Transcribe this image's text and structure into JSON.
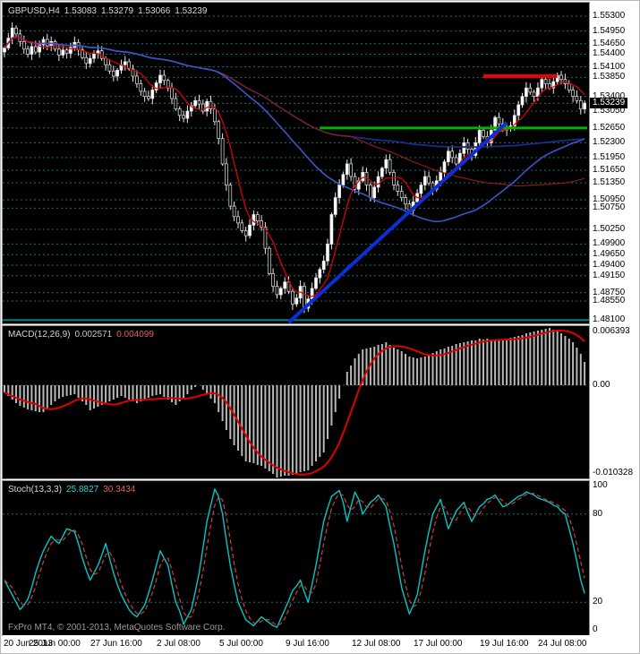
{
  "colors": {
    "background": "#000000",
    "grid": "#1d6e6e",
    "bull": "#ffffff",
    "bear": "#000000",
    "candle_outline": "#e8e8e8",
    "ma_fast": "#e80000",
    "ma_slow": "#8b1a1a",
    "ma_mid": "#3a56c8",
    "ma_long": "#1c2d8a",
    "macd_histogram": "#b8b8b8",
    "macd_signal": "#e00000",
    "stoch_k": "#00c8c8",
    "stoch_d": "#d04040"
  },
  "price_panel": {
    "header_symbol": "GBPUSD,H4",
    "header_open": "1.53083",
    "header_high": "1.53279",
    "header_low": "1.53066",
    "header_close": "1.53239",
    "current_price": "1.53239"
  },
  "macd_panel": {
    "label": "MACD(12,26,9)",
    "value_main": "0.002571",
    "value_signal": "0.004099"
  },
  "stoch_panel": {
    "label": "Stoch(13,3,3)",
    "value_main": "25.8827",
    "value_signal": "30.3434",
    "copyright": "FxPro MT4, © 2001-2013, MetaQuotes Software Corp."
  },
  "time_axis": {
    "ticks": [
      {
        "label": "20 Jun 2013",
        "index": 0
      },
      {
        "label": "25 Jun 00:00",
        "index": 13
      },
      {
        "label": "27 Jun 16:00",
        "index": 29
      },
      {
        "label": "2 Jul 08:00",
        "index": 46
      },
      {
        "label": "5 Jul 00:00",
        "index": 62
      },
      {
        "label": "9 Jul 16:00",
        "index": 79
      },
      {
        "label": "12 Jul 08:00",
        "index": 96
      },
      {
        "label": "17 Jul 00:00",
        "index": 112
      },
      {
        "label": "19 Jul 16:00",
        "index": 129
      },
      {
        "label": "24 Jul 08:00",
        "index": 144
      }
    ]
  },
  "chart_data": [
    {
      "type": "candlestick",
      "title": "GBPUSD H4 price",
      "price_range": [
        1.4802,
        1.5562
      ],
      "first_open": 1.5445,
      "bid_price": 1.53239,
      "closes": [
        1.5455,
        1.5478,
        1.5502,
        1.5488,
        1.547,
        1.5452,
        1.544,
        1.5458,
        1.5445,
        1.5462,
        1.5475,
        1.546,
        1.547,
        1.5452,
        1.5438,
        1.545,
        1.5442,
        1.5456,
        1.5468,
        1.545,
        1.5432,
        1.5418,
        1.543,
        1.5442,
        1.5448,
        1.543,
        1.5415,
        1.54,
        1.5388,
        1.5402,
        1.5415,
        1.5422,
        1.5405,
        1.5388,
        1.537,
        1.5352,
        1.534,
        1.5335,
        1.5355,
        1.5372,
        1.539,
        1.5378,
        1.536,
        1.5335,
        1.531,
        1.5295,
        1.5288,
        1.5305,
        1.5318,
        1.533,
        1.5322,
        1.5305,
        1.5328,
        1.531,
        1.528,
        1.524,
        1.518,
        1.513,
        1.508,
        1.5055,
        1.504,
        1.5022,
        1.501,
        1.5035,
        1.506,
        1.5045,
        1.503,
        1.498,
        1.492,
        1.489,
        1.487,
        1.4885,
        1.49,
        1.4878,
        1.4848,
        1.4862,
        1.489,
        1.4838,
        1.486,
        1.4885,
        1.491,
        1.493,
        1.495,
        1.499,
        1.506,
        1.51,
        1.513,
        1.5155,
        1.518,
        1.515,
        1.512,
        1.514,
        1.516,
        1.513,
        1.51,
        1.5125,
        1.515,
        1.517,
        1.519,
        1.516,
        1.513,
        1.5115,
        1.51,
        1.5085,
        1.507,
        1.509,
        1.511,
        1.513,
        1.515,
        1.5135,
        1.512,
        1.514,
        1.516,
        1.5185,
        1.521,
        1.5195,
        1.518,
        1.5205,
        1.523,
        1.5215,
        1.52,
        1.523,
        1.526,
        1.5245,
        1.523,
        1.526,
        1.529,
        1.5275,
        1.526,
        1.5265,
        1.527,
        1.5295,
        1.532,
        1.534,
        1.536,
        1.535,
        1.534,
        1.536,
        1.538,
        1.537,
        1.536,
        1.5375,
        1.539,
        1.538,
        1.537,
        1.5355,
        1.534,
        1.533,
        1.531,
        1.5324
      ],
      "overlays": {
        "ma_fast": {
          "period": 7
        },
        "ma_slow": {
          "period": 90
        },
        "ma_mid": {
          "period": 55
        },
        "ma_long": {
          "period": 150
        }
      },
      "objects": {
        "trendline": {
          "from_index": 73,
          "from_price": 1.4804,
          "to_index": 129,
          "to_price": 1.5278,
          "color": "#0b2fd4",
          "width": 4
        },
        "resistance": {
          "from_index": 123,
          "to_index": 142,
          "price": 1.5388,
          "color": "#ee0000",
          "width": 4
        },
        "support_green": {
          "from_index": 81,
          "price": 1.5265,
          "color": "#00b400",
          "width": 3
        },
        "support_teal": {
          "price": 1.481,
          "color": "#008080",
          "width": 2
        }
      },
      "axis_labels": [
        {
          "label": "1.55300",
          "value": 1.553
        },
        {
          "label": "1.54950",
          "value": 1.5495
        },
        {
          "label": "1.54650",
          "value": 1.5465
        },
        {
          "label": "1.54400",
          "value": 1.544
        },
        {
          "label": "1.54100",
          "value": 1.541
        },
        {
          "label": "1.53850",
          "value": 1.5385
        },
        {
          "label": "1.53400",
          "value": 1.534
        },
        {
          "label": "1.53050",
          "value": 1.5305
        },
        {
          "label": "1.52650",
          "value": 1.5265
        },
        {
          "label": "1.52300",
          "value": 1.523
        },
        {
          "label": "1.51950",
          "value": 1.5195
        },
        {
          "label": "1.51650",
          "value": 1.5165
        },
        {
          "label": "1.51350",
          "value": 1.5135
        },
        {
          "label": "1.50950",
          "value": 1.5095
        },
        {
          "label": "1.50750",
          "value": 1.5075
        },
        {
          "label": "1.50250",
          "value": 1.5025
        },
        {
          "label": "1.49900",
          "value": 1.499
        },
        {
          "label": "1.49650",
          "value": 1.4965
        },
        {
          "label": "1.49400",
          "value": 1.494
        },
        {
          "label": "1.49150",
          "value": 1.4915
        },
        {
          "label": "1.48750",
          "value": 1.4875
        },
        {
          "label": "1.48550",
          "value": 1.4855
        },
        {
          "label": "1.48100",
          "value": 1.481
        }
      ]
    },
    {
      "type": "bar",
      "title": "MACD(12,26,9)",
      "range": [
        -0.0104,
        0.0066
      ],
      "signal_period": 9,
      "histogram": [
        -0.0008,
        -0.0012,
        -0.0016,
        -0.002,
        -0.0023,
        -0.0025,
        -0.0027,
        -0.0028,
        -0.0029,
        -0.003,
        -0.003,
        -0.0026,
        -0.0022,
        -0.0018,
        -0.0015,
        -0.0013,
        -0.0012,
        -0.0011,
        -0.001,
        -0.0014,
        -0.0018,
        -0.0022,
        -0.0028,
        -0.0026,
        -0.0024,
        -0.0022,
        -0.002,
        -0.0018,
        -0.0016,
        -0.0014,
        -0.0012,
        -0.0014,
        -0.0016,
        -0.0018,
        -0.002,
        -0.0018,
        -0.0016,
        -0.0014,
        -0.0012,
        -0.0011,
        -0.001,
        -0.0013,
        -0.0016,
        -0.0019,
        -0.0022,
        -0.0018,
        -0.0014,
        -0.001,
        -0.0005,
        -0.0002,
        0.0,
        -0.0005,
        -0.001,
        -0.0015,
        -0.002,
        -0.003,
        -0.004,
        -0.005,
        -0.006,
        -0.0067,
        -0.0073,
        -0.0079,
        -0.0085,
        -0.0086,
        -0.0087,
        -0.0089,
        -0.009,
        -0.0093,
        -0.0096,
        -0.0099,
        -0.0103,
        -0.0102,
        -0.0101,
        -0.0101,
        -0.01,
        -0.0099,
        -0.0097,
        -0.0096,
        -0.0095,
        -0.009,
        -0.0085,
        -0.008,
        -0.0075,
        -0.006,
        -0.0045,
        -0.003,
        -0.0015,
        0.0,
        0.0015,
        0.0022,
        0.003,
        0.0035,
        0.004,
        0.0041,
        0.0042,
        0.0043,
        0.0045,
        0.0046,
        0.0048,
        0.0045,
        0.0042,
        0.004,
        0.0038,
        0.0035,
        0.0032,
        0.0031,
        0.003,
        0.0031,
        0.0032,
        0.0034,
        0.0036,
        0.0038,
        0.004,
        0.0041,
        0.0043,
        0.0044,
        0.0046,
        0.0047,
        0.0048,
        0.0049,
        0.005,
        0.005,
        0.0052,
        0.0051,
        0.0052,
        0.0051,
        0.005,
        0.005,
        0.005,
        0.0052,
        0.0053,
        0.0054,
        0.0055,
        0.0056,
        0.0058,
        0.0059,
        0.006,
        0.0061,
        0.0062,
        0.0063,
        0.0064,
        0.0062,
        0.006,
        0.0058,
        0.0055,
        0.0052,
        0.0048,
        0.0042,
        0.0035,
        0.0026
      ],
      "levels": [
        {
          "label": "0.006393",
          "value": 0.006393
        },
        {
          "label": "0.00",
          "value": 0
        },
        {
          "label": "-0.010328",
          "value": -0.010328
        }
      ]
    },
    {
      "type": "line",
      "title": "Stoch(13,3,3)",
      "range": [
        0,
        100
      ],
      "d_period": 3,
      "level_lines": [
        80,
        20
      ],
      "k": [
        35,
        30,
        25,
        20,
        15,
        18,
        22,
        30,
        40,
        48,
        55,
        60,
        65,
        62,
        60,
        65,
        70,
        69,
        68,
        60,
        50,
        42,
        35,
        40,
        45,
        52,
        60,
        50,
        40,
        32,
        25,
        20,
        15,
        12,
        10,
        14,
        18,
        26,
        35,
        45,
        55,
        50,
        45,
        32,
        20,
        14,
        5,
        10,
        15,
        27,
        40,
        57,
        75,
        86,
        97,
        92,
        80,
        62,
        45,
        32,
        20,
        14,
        8,
        6,
        4,
        7,
        10,
        8,
        6,
        4,
        3,
        9,
        15,
        21,
        28,
        31,
        35,
        27,
        20,
        32,
        45,
        60,
        75,
        84,
        92,
        94,
        96,
        88,
        75,
        85,
        95,
        90,
        80,
        84,
        88,
        90,
        93,
        89,
        85,
        72,
        60,
        45,
        30,
        21,
        12,
        18,
        25,
        40,
        55,
        68,
        80,
        85,
        90,
        80,
        70,
        76,
        82,
        85,
        88,
        81,
        75,
        80,
        85,
        87,
        90,
        91,
        93,
        89,
        85,
        86,
        88,
        90,
        92,
        93,
        95,
        94,
        93,
        91,
        90,
        89,
        88,
        86,
        85,
        82,
        80,
        70,
        60,
        48,
        35,
        26
      ],
      "axis": [
        {
          "label": "100",
          "value": 100
        },
        {
          "label": "80",
          "value": 80
        },
        {
          "label": "20",
          "value": 20
        },
        {
          "label": "0",
          "value": 0
        }
      ]
    }
  ]
}
